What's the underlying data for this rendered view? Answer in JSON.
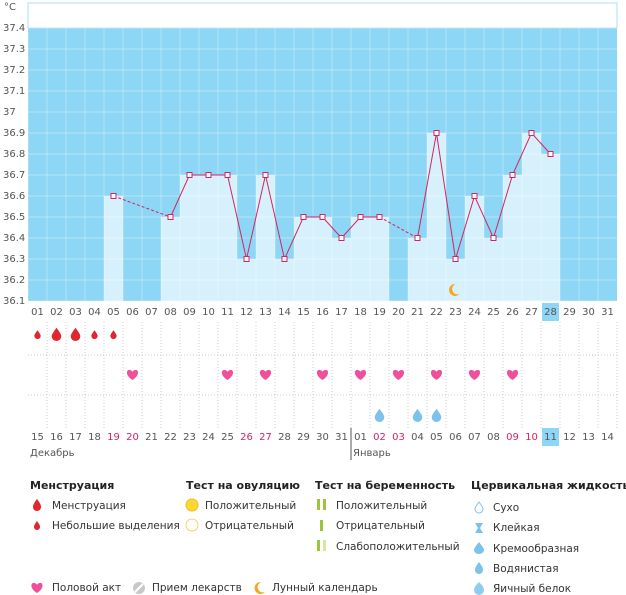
{
  "chart_data": {
    "type": "line",
    "y_label": "°C",
    "categories": [
      "01",
      "02",
      "03",
      "04",
      "05",
      "06",
      "07",
      "08",
      "09",
      "10",
      "11",
      "12",
      "13",
      "14",
      "15",
      "16",
      "17",
      "18",
      "19",
      "20",
      "21",
      "22",
      "23",
      "24",
      "25",
      "26",
      "27",
      "28",
      "29",
      "30",
      "31"
    ],
    "values": [
      null,
      null,
      null,
      null,
      36.6,
      null,
      null,
      36.5,
      36.7,
      36.7,
      36.7,
      36.3,
      36.7,
      36.3,
      36.5,
      36.5,
      36.4,
      36.5,
      36.5,
      null,
      36.4,
      36.9,
      36.3,
      36.6,
      36.4,
      36.7,
      36.9,
      36.8,
      null,
      null,
      null
    ],
    "ylim": [
      36.1,
      37.4
    ],
    "yticks": [
      36.1,
      36.2,
      36.3,
      36.4,
      36.5,
      36.6,
      36.7,
      36.8,
      36.9,
      37,
      37.1,
      37.2,
      37.3,
      37.4
    ],
    "color": "#d4245e",
    "current_day": "28",
    "lunar_days": [
      "23"
    ],
    "menstruation": [
      {
        "day": "01",
        "amount": "small"
      },
      {
        "day": "02",
        "amount": "big"
      },
      {
        "day": "03",
        "amount": "big"
      },
      {
        "day": "04",
        "amount": "small"
      },
      {
        "day": "05",
        "amount": "small"
      }
    ],
    "intercourse_days": [
      "06",
      "11",
      "13",
      "16",
      "18",
      "20",
      "22",
      "24",
      "26"
    ],
    "egg_white_days": [
      "19",
      "21",
      "22"
    ]
  },
  "calendar": {
    "current_date": "11",
    "months": [
      {
        "name": "Декабрь",
        "dates": [
          {
            "label": "15",
            "red": false
          },
          {
            "label": "16",
            "red": false
          },
          {
            "label": "17",
            "red": false
          },
          {
            "label": "18",
            "red": false
          },
          {
            "label": "19",
            "red": true
          },
          {
            "label": "20",
            "red": true
          },
          {
            "label": "21",
            "red": false
          },
          {
            "label": "22",
            "red": false
          },
          {
            "label": "23",
            "red": false
          },
          {
            "label": "24",
            "red": false
          },
          {
            "label": "25",
            "red": false
          },
          {
            "label": "26",
            "red": true
          },
          {
            "label": "27",
            "red": true
          },
          {
            "label": "28",
            "red": false
          },
          {
            "label": "29",
            "red": false
          },
          {
            "label": "30",
            "red": false
          },
          {
            "label": "31",
            "red": false
          }
        ]
      },
      {
        "name": "Январь",
        "dates": [
          {
            "label": "01",
            "red": false
          },
          {
            "label": "02",
            "red": true
          },
          {
            "label": "03",
            "red": true
          },
          {
            "label": "04",
            "red": false
          },
          {
            "label": "05",
            "red": false
          },
          {
            "label": "06",
            "red": false
          },
          {
            "label": "07",
            "red": false
          },
          {
            "label": "08",
            "red": false
          },
          {
            "label": "09",
            "red": true
          },
          {
            "label": "10",
            "red": true
          },
          {
            "label": "11",
            "red": false
          },
          {
            "label": "12",
            "red": false
          },
          {
            "label": "13",
            "red": false
          },
          {
            "label": "14",
            "red": false
          }
        ]
      }
    ]
  },
  "legend": {
    "menstruation": {
      "title": "Менструация",
      "items": [
        "Менструация",
        "Небольшие выделения"
      ]
    },
    "ovulation_test": {
      "title": "Тест на овуляцию",
      "items": [
        "Положительный",
        "Отрицательный"
      ]
    },
    "pregnancy_test": {
      "title": "Тест на беременность",
      "items": [
        "Положительный",
        "Отрицательный",
        "Слабоположительный"
      ]
    },
    "cervical_fluid": {
      "title": "Цервикальная жидкость",
      "items": [
        "Сухо",
        "Клейкая",
        "Кремообразная",
        "Водянистая",
        "Яичный белок"
      ]
    },
    "other": [
      "Половой акт",
      "Прием лекарств",
      "Лунный календарь"
    ]
  }
}
